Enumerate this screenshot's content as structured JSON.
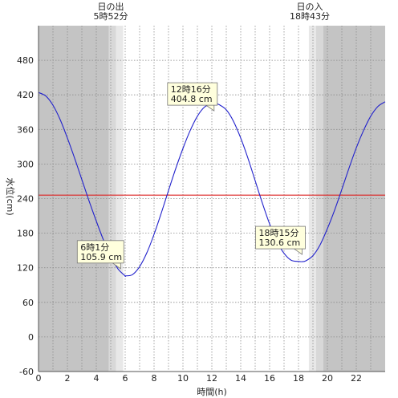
{
  "chart_data": {
    "type": "line",
    "xlabel": "時間(h)",
    "ylabel": "水位(cm)",
    "xlim": [
      0,
      24
    ],
    "ylim": [
      -60,
      540
    ],
    "x_ticks": [
      0,
      2,
      4,
      6,
      8,
      10,
      12,
      14,
      16,
      18,
      20,
      22
    ],
    "y_ticks": [
      -60,
      0,
      60,
      120,
      180,
      240,
      300,
      360,
      420,
      480
    ],
    "grid": true,
    "reference_line": {
      "y": 246,
      "color": "#dd2222"
    },
    "series": [
      {
        "color": "#2222cc",
        "x": [
          0,
          0.5,
          1,
          1.5,
          2,
          2.5,
          3,
          3.5,
          4,
          4.5,
          5,
          5.5,
          6,
          6.017,
          6.5,
          7,
          7.5,
          8,
          8.5,
          9,
          9.5,
          10,
          10.5,
          11,
          11.5,
          12,
          12.267,
          12.5,
          13,
          13.5,
          14,
          14.5,
          15,
          15.5,
          16,
          16.5,
          17,
          17.5,
          18,
          18.25,
          18.5,
          19,
          19.5,
          20,
          20.5,
          21,
          21.5,
          22,
          22.5,
          23,
          23.5,
          24
        ],
        "y": [
          424,
          418,
          402,
          377,
          345,
          310,
          273,
          236,
          201,
          168,
          140,
          118,
          106,
          105.9,
          108,
          122,
          146,
          178,
          215,
          254,
          292,
          327,
          358,
          383,
          399,
          404,
          404.8,
          403,
          394,
          374,
          345,
          310,
          271,
          232,
          196,
          166,
          145,
          133,
          131,
          130.6,
          132,
          141,
          160,
          188,
          220,
          256,
          293,
          328,
          358,
          383,
          400,
          408
        ]
      }
    ],
    "annotations": [
      {
        "time": "6時1分",
        "value": "105.9 cm",
        "x": 6.017,
        "y": 105.9
      },
      {
        "time": "12時16分",
        "value": "404.8 cm",
        "x": 12.267,
        "y": 404.8
      },
      {
        "time": "18時15分",
        "value": "130.6 cm",
        "x": 18.25,
        "y": 130.6
      }
    ],
    "sun": {
      "rise": {
        "label": "日の出",
        "time": "5時52分",
        "x": 5.867
      },
      "set": {
        "label": "日の入",
        "time": "18時43分",
        "x": 18.717
      }
    },
    "colors": {
      "night": "#c4c4c4",
      "twilight_dark": "#d8d8d8",
      "twilight_light": "#e8e8e8",
      "day": "#ffffff"
    }
  }
}
